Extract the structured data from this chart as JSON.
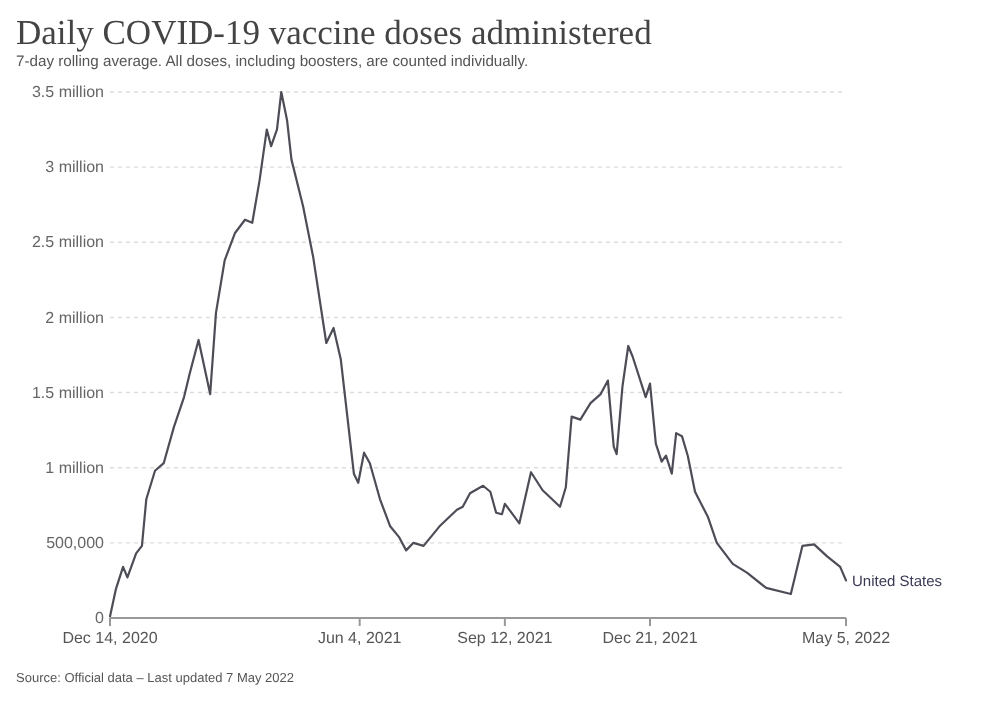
{
  "chart_data": {
    "type": "line",
    "title": "Daily COVID-19 vaccine doses administered",
    "subtitle": "7-day rolling average. All doses, including boosters, are counted individually.",
    "annotations": [
      "Source: Official data – Last updated 7 May 2022"
    ],
    "xlim": [
      "2020-12-14",
      "2022-05-05"
    ],
    "xticks": [
      {
        "value": "2020-12-14",
        "label": "Dec 14, 2020"
      },
      {
        "value": "2021-06-04",
        "label": "Jun 4, 2021"
      },
      {
        "value": "2021-09-12",
        "label": "Sep 12, 2021"
      },
      {
        "value": "2021-12-21",
        "label": "Dec 21, 2021"
      },
      {
        "value": "2022-05-05",
        "label": "May 5, 2022"
      }
    ],
    "ylim": [
      0,
      3500000
    ],
    "yticks": [
      0,
      {
        "value": 500000,
        "label": "500,000"
      },
      {
        "value": 1000000,
        "label": "1 million"
      },
      {
        "value": 1500000,
        "label": "1.5 million"
      },
      {
        "value": 2000000,
        "label": "2 million"
      },
      {
        "value": 2500000,
        "label": "2.5 million"
      },
      {
        "value": 3000000,
        "label": "3 million"
      },
      {
        "value": 3500000,
        "label": "3.5 million"
      }
    ],
    "grid": "y",
    "legend": false,
    "marker": "none",
    "line_style": "solid",
    "series": [
      {
        "name": "United States",
        "color": "#4d4d57",
        "x": [
          "2020-12-14",
          "2020-12-18",
          "2020-12-23",
          "2020-12-26",
          "2021-01-01",
          "2021-01-05",
          "2021-01-08",
          "2021-01-14",
          "2021-01-20",
          "2021-01-27",
          "2021-02-03",
          "2021-02-07",
          "2021-02-13",
          "2021-02-21",
          "2021-02-25",
          "2021-03-03",
          "2021-03-10",
          "2021-03-17",
          "2021-03-22",
          "2021-03-27",
          "2021-04-01",
          "2021-04-04",
          "2021-04-08",
          "2021-04-11",
          "2021-04-15",
          "2021-04-18",
          "2021-04-26",
          "2021-05-03",
          "2021-05-12",
          "2021-05-17",
          "2021-05-22",
          "2021-05-31",
          "2021-06-03",
          "2021-06-07",
          "2021-06-11",
          "2021-06-18",
          "2021-06-25",
          "2021-07-01",
          "2021-07-06",
          "2021-07-11",
          "2021-07-18",
          "2021-07-29",
          "2021-08-10",
          "2021-08-14",
          "2021-08-19",
          "2021-08-28",
          "2021-09-02",
          "2021-09-06",
          "2021-09-10",
          "2021-09-12",
          "2021-09-22",
          "2021-09-30",
          "2021-10-08",
          "2021-10-20",
          "2021-10-24",
          "2021-10-28",
          "2021-11-03",
          "2021-11-10",
          "2021-11-17",
          "2021-11-22",
          "2021-11-26",
          "2021-11-28",
          "2021-12-02",
          "2021-12-06",
          "2021-12-09",
          "2021-12-18",
          "2021-12-21",
          "2021-12-25",
          "2021-12-29",
          "2022-01-01",
          "2022-01-05",
          "2022-01-08",
          "2022-01-12",
          "2022-01-16",
          "2022-01-21",
          "2022-01-30",
          "2022-02-05",
          "2022-02-16",
          "2022-02-26",
          "2022-03-11",
          "2022-03-28",
          "2022-04-05",
          "2022-04-13",
          "2022-04-22",
          "2022-05-01",
          "2022-05-05"
        ],
        "values": [
          10000,
          190000,
          340000,
          270000,
          430000,
          480000,
          790000,
          980000,
          1030000,
          1270000,
          1470000,
          1630000,
          1850000,
          1490000,
          2030000,
          2380000,
          2560000,
          2650000,
          2630000,
          2910000,
          3250000,
          3140000,
          3250000,
          3500000,
          3310000,
          3050000,
          2740000,
          2400000,
          1830000,
          1930000,
          1720000,
          960000,
          900000,
          1100000,
          1030000,
          790000,
          610000,
          540000,
          450000,
          500000,
          480000,
          610000,
          720000,
          740000,
          830000,
          880000,
          840000,
          700000,
          690000,
          760000,
          630000,
          970000,
          850000,
          740000,
          870000,
          1340000,
          1320000,
          1430000,
          1490000,
          1580000,
          1140000,
          1090000,
          1540000,
          1810000,
          1740000,
          1470000,
          1560000,
          1160000,
          1040000,
          1080000,
          960000,
          1230000,
          1210000,
          1080000,
          840000,
          670000,
          500000,
          360000,
          300000,
          200000,
          160000,
          480000,
          490000,
          410000,
          340000,
          250000
        ]
      }
    ]
  }
}
